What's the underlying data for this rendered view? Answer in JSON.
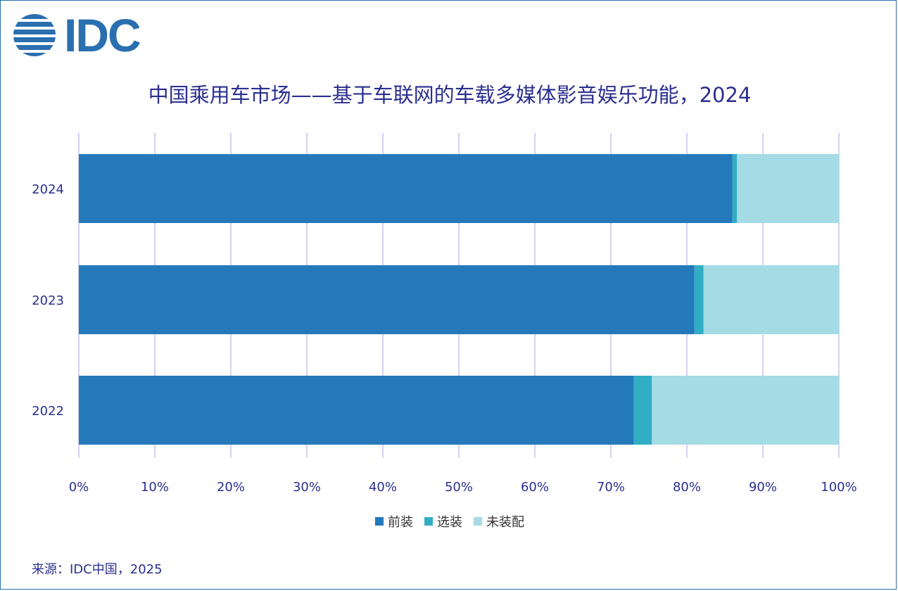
{
  "logo": {
    "text": "IDC"
  },
  "chart_data": {
    "type": "bar",
    "orientation": "horizontal",
    "stacked": true,
    "title": "中国乘用车市场——基于车联网的车载多媒体影音娱乐功能，2024",
    "categories": [
      "2024",
      "2023",
      "2022"
    ],
    "series": [
      {
        "name": "前装",
        "values": [
          86,
          81,
          73
        ],
        "color": "#2479ba"
      },
      {
        "name": "选装",
        "values": [
          0.6,
          1.2,
          2.4
        ],
        "color": "#31aec4"
      },
      {
        "name": "未装配",
        "values": [
          13.4,
          17.8,
          24.6
        ],
        "color": "#a4dbe5"
      }
    ],
    "xlim": [
      0,
      100
    ],
    "x_ticks": [
      "0%",
      "10%",
      "20%",
      "30%",
      "40%",
      "50%",
      "60%",
      "70%",
      "80%",
      "90%",
      "100%"
    ],
    "grid": true,
    "legend_position": "bottom"
  },
  "source": "来源：IDC中国，2025"
}
